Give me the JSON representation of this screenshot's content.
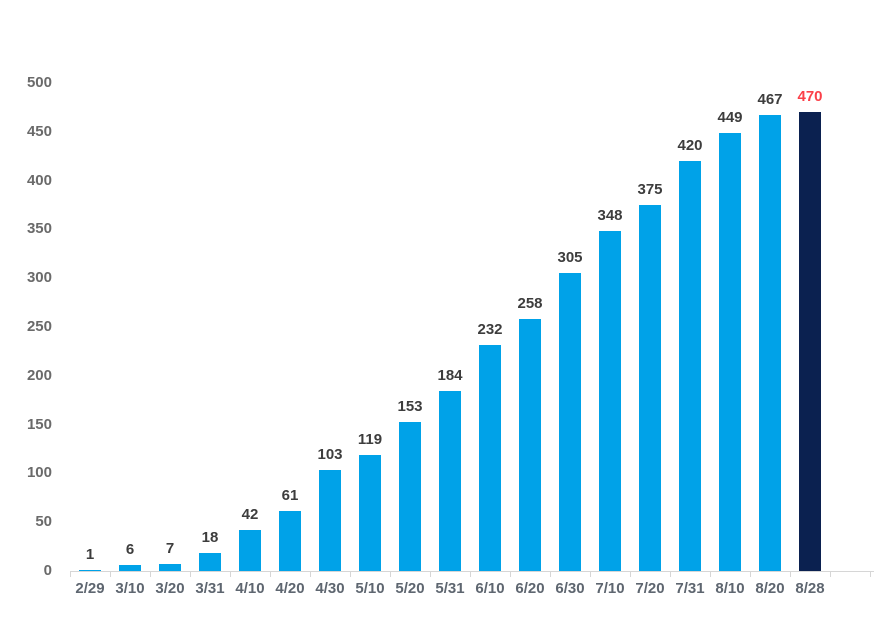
{
  "chart_data": {
    "type": "bar",
    "title": "",
    "categories": [
      "2/29",
      "3/10",
      "3/20",
      "3/31",
      "4/10",
      "4/20",
      "4/30",
      "5/10",
      "5/20",
      "5/31",
      "6/10",
      "6/20",
      "6/30",
      "7/10",
      "7/20",
      "7/31",
      "8/10",
      "8/20",
      "8/28"
    ],
    "values": [
      1,
      6,
      7,
      18,
      42,
      61,
      103,
      119,
      153,
      184,
      232,
      258,
      305,
      348,
      375,
      420,
      449,
      467,
      470
    ],
    "data_labels": [
      "1",
      "6",
      "7",
      "18",
      "42",
      "61",
      "103",
      "119",
      "153",
      "184",
      "232",
      "258",
      "305",
      "348",
      "375",
      "420",
      "449",
      "467",
      "470"
    ],
    "highlight_index": 18,
    "xlabel": "",
    "ylabel": "",
    "ylim": [
      0,
      500
    ],
    "yticks": [
      0,
      50,
      100,
      150,
      200,
      250,
      300,
      350,
      400,
      450,
      500
    ],
    "grid": false,
    "legend": "none",
    "colors": {
      "bar": "#00a2e8",
      "bar_highlight": "#0b2150",
      "data_label": "#3d3d3d",
      "data_label_highlight": "#fb4049",
      "axis_line": "#d6d6d6",
      "y_tick_label": "#6a6a6a",
      "x_tick_label": "#5e6670",
      "background": "#ffffff"
    }
  }
}
